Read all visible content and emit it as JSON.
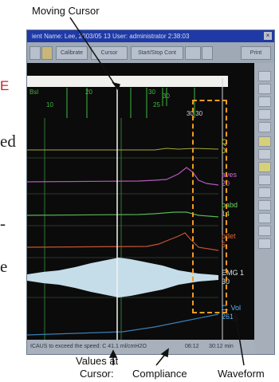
{
  "callouts": {
    "moving_cursor": "Moving Cursor",
    "values_at_cursor_l1": "Values at",
    "values_at_cursor_l2": "Cursor:",
    "compliance": "Compliance",
    "waveform": "Waveform"
  },
  "side_fragments": {
    "red_letter": "E",
    "frag1": "ed",
    "frag2": "-",
    "frag3": "e"
  },
  "window": {
    "title": "ient Name: Lee, 2003/05 13  User: administrator  2:38:03",
    "close_label": "×",
    "toolbar": {
      "button1": "Calibrate",
      "button2": "Cursor",
      "button3": "Start/Stop Cont",
      "button4": "Print"
    },
    "markers": {
      "m1": "Bsl",
      "m2": "10",
      "m3": "20",
      "m4": "30",
      "m5": "30",
      "m6": "25",
      "m7": "30 30"
    },
    "channel_values": [
      {
        "label": "Q",
        "value": "0",
        "color": "#d9e04a"
      },
      {
        "label": "aves",
        "value": "20",
        "color": "#d066d9"
      },
      {
        "label": "pabd",
        "value": "14",
        "color": "#6fd866"
      },
      {
        "label": "pdet",
        "value": "5",
        "color": "#e0683a"
      },
      {
        "label": "EMG 1",
        "value": "30",
        "color": "#d3e6f0"
      },
      {
        "label": "C. Vol",
        "value": "261",
        "color": "#66b4ef"
      }
    ],
    "status_text": "ICAUS to exceed the speed: C 41.1 ml/cmH2O",
    "status_time": "06:12",
    "status_extra": "30:12 min"
  },
  "colors": {
    "window_bg": "#0b0b0b",
    "title_bg": "#1f3aa6",
    "highlight_box": "#f29b22"
  }
}
